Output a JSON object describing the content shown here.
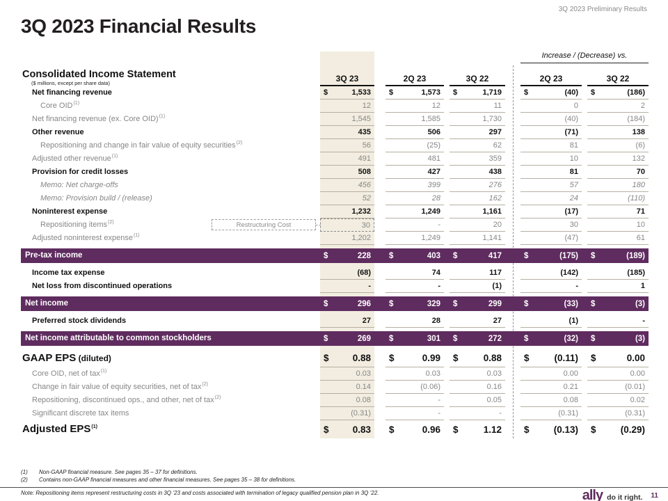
{
  "header": {
    "corner_label": "3Q 2023 Preliminary Results",
    "title": "3Q 2023 Financial Results"
  },
  "table": {
    "title": "Consolidated Income Statement",
    "subtitle": "($ millions, except per share data)",
    "increase_decrease_label": "Increase / (Decrease) vs.",
    "columns": [
      "3Q 23",
      "2Q 23",
      "3Q 22",
      "2Q 23",
      "3Q 22"
    ],
    "callout_label": "Restructuring Cost",
    "highlight_color": "#f2ede0",
    "banner_color": "#5f2c5f",
    "rows": [
      {
        "label": "Net financing revenue",
        "cls": "bold i1",
        "dollar": true,
        "values": [
          "1,533",
          "1,573",
          "1,719",
          "(40)",
          "(186)"
        ]
      },
      {
        "label": "Core OID",
        "sup": "(1)",
        "cls": "gray i2",
        "values": [
          "12",
          "12",
          "11",
          "0",
          "2"
        ]
      },
      {
        "label": "Net financing revenue (ex. Core OID)",
        "sup": "(1)",
        "cls": "gray i1",
        "values": [
          "1,545",
          "1,585",
          "1,730",
          "(40)",
          "(184)"
        ]
      },
      {
        "label": "Other revenue",
        "cls": "bold i1",
        "values": [
          "435",
          "506",
          "297",
          "(71)",
          "138"
        ]
      },
      {
        "label": "Repositioning and change in fair value of equity securities",
        "sup": "(2)",
        "cls": "gray i2",
        "values": [
          "56",
          "(25)",
          "62",
          "81",
          "(6)"
        ]
      },
      {
        "label": "Adjusted other revenue",
        "sup": "(1)",
        "cls": "gray i1",
        "values": [
          "491",
          "481",
          "359",
          "10",
          "132"
        ]
      },
      {
        "label": "Provision for credit losses",
        "cls": "bold i1",
        "values": [
          "508",
          "427",
          "438",
          "81",
          "70"
        ]
      },
      {
        "label": "Memo: Net charge-offs",
        "cls": "memo i2",
        "values": [
          "456",
          "399",
          "276",
          "57",
          "180"
        ]
      },
      {
        "label": "Memo: Provision build / (release)",
        "cls": "memo i2",
        "values": [
          "52",
          "28",
          "162",
          "24",
          "(110)"
        ]
      },
      {
        "label": "Noninterest expense",
        "cls": "bold i1",
        "values": [
          "1,232",
          "1,249",
          "1,161",
          "(17)",
          "71"
        ]
      },
      {
        "label": "Repositioning items",
        "sup": "(2)",
        "cls": "gray i2",
        "callout": true,
        "values": [
          "30",
          "-",
          "20",
          "30",
          "10"
        ]
      },
      {
        "label": "Adjusted noninterest expense",
        "sup": "(1)",
        "cls": "gray i1",
        "values": [
          "1,202",
          "1,249",
          "1,141",
          "(47)",
          "61"
        ]
      },
      {
        "label": "Pre-tax income",
        "cls": "banner",
        "dollar": true,
        "values": [
          "228",
          "403",
          "417",
          "(175)",
          "(189)"
        ]
      },
      {
        "label": "Income tax expense",
        "cls": "bold i1",
        "values": [
          "(68)",
          "74",
          "117",
          "(142)",
          "(185)"
        ]
      },
      {
        "label": "Net loss from discontinued operations",
        "cls": "bold i1",
        "values": [
          "-",
          "-",
          "(1)",
          "-",
          "1"
        ]
      },
      {
        "label": "Net income",
        "cls": "banner",
        "dollar": true,
        "values": [
          "296",
          "329",
          "299",
          "(33)",
          "(3)"
        ]
      },
      {
        "label": "Preferred stock dividends",
        "cls": "bold i1",
        "values": [
          "27",
          "28",
          "27",
          "(1)",
          "-"
        ]
      },
      {
        "label": "Net income attributable to common stockholders",
        "cls": "banner",
        "dollar": true,
        "values": [
          "269",
          "301",
          "272",
          "(32)",
          "(3)"
        ]
      },
      {
        "label": "GAAP EPS",
        "suffix": "(diluted)",
        "cls": "eps",
        "dollar": true,
        "values": [
          "0.88",
          "0.99",
          "0.88",
          "(0.11)",
          "0.00"
        ]
      },
      {
        "label": "Core OID, net of tax",
        "sup": "(1)",
        "cls": "gray i1",
        "values": [
          "0.03",
          "0.03",
          "0.03",
          "0.00",
          "0.00"
        ]
      },
      {
        "label": "Change in fair value of equity securities, net of tax",
        "sup": "(2)",
        "cls": "gray i1",
        "values": [
          "0.14",
          "(0.06)",
          "0.16",
          "0.21",
          "(0.01)"
        ]
      },
      {
        "label": "Repositioning, discontinued ops., and other, net of tax",
        "sup": "(2)",
        "cls": "gray i1",
        "values": [
          "0.08",
          "-",
          "0.05",
          "0.08",
          "0.02"
        ]
      },
      {
        "label": "Significant discrete tax items",
        "cls": "gray i1",
        "values": [
          "(0.31)",
          "-",
          "-",
          "(0.31)",
          "(0.31)"
        ]
      },
      {
        "label": "Adjusted EPS",
        "sup": "(1)",
        "cls": "eps noline",
        "dollar": true,
        "values": [
          "0.83",
          "0.96",
          "1.12",
          "(0.13)",
          "(0.29)"
        ]
      }
    ]
  },
  "footnotes": [
    {
      "num": "(1)",
      "text": "Non-GAAP financial measure. See pages 35 – 37  for definitions."
    },
    {
      "num": "(2)",
      "text": "Contains non-GAAP financial measures and other financial measures. See pages 35 – 38 for definitions."
    }
  ],
  "note": "Note: Repositioning items represent restructuring costs in 3Q ’23 and costs associated with termination of legacy qualified pension plan in 3Q ’22.",
  "footer": {
    "logo": "ally",
    "tagline": "do it right.",
    "page": "11"
  }
}
